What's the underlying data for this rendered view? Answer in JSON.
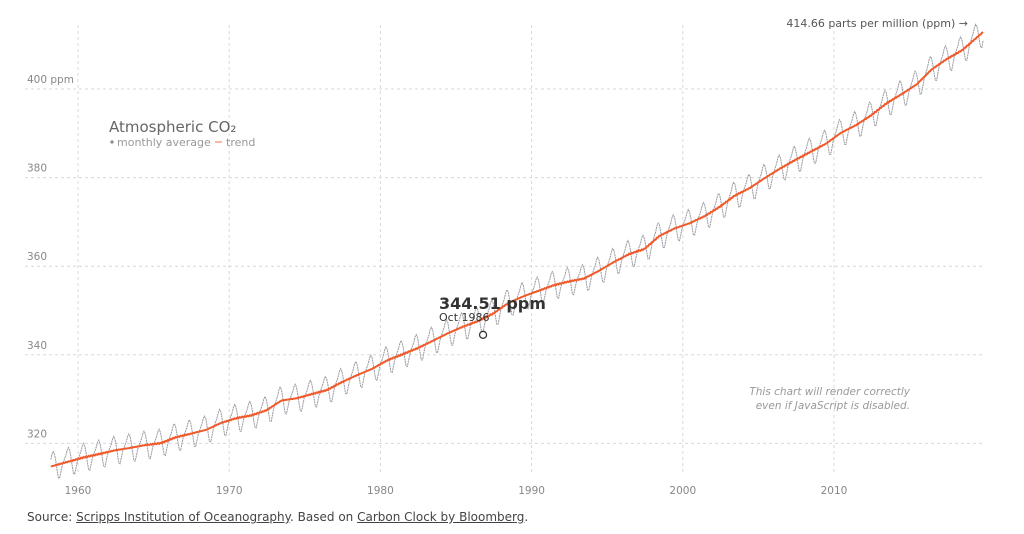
{
  "chart_data": {
    "type": "line",
    "title": "Atmospheric CO₂",
    "legend": {
      "monthly_label": "monthly average",
      "trend_label": "trend",
      "placement": "top-left"
    },
    "xlim": [
      1958.2,
      2019.9
    ],
    "ylim": [
      312,
      418
    ],
    "x_ticks": [
      "1960",
      "1970",
      "1980",
      "1990",
      "2000",
      "2010"
    ],
    "x_tick_values": [
      1960,
      1970,
      1980,
      1990,
      2000,
      2010
    ],
    "y_ticks": [
      "320",
      "340",
      "360",
      "380",
      "400 ppm"
    ],
    "y_tick_values": [
      320,
      340,
      360,
      380,
      400
    ],
    "grid": true,
    "annual_mean_years": [
      1959,
      1960,
      1961,
      1962,
      1963,
      1964,
      1965,
      1966,
      1967,
      1968,
      1969,
      1970,
      1971,
      1972,
      1973,
      1974,
      1975,
      1976,
      1977,
      1978,
      1979,
      1980,
      1981,
      1982,
      1983,
      1984,
      1985,
      1986,
      1987,
      1988,
      1989,
      1990,
      1991,
      1992,
      1993,
      1994,
      1995,
      1996,
      1997,
      1998,
      1999,
      2000,
      2001,
      2002,
      2003,
      2004,
      2005,
      2006,
      2007,
      2008,
      2009,
      2010,
      2011,
      2012,
      2013,
      2014,
      2015,
      2016,
      2017,
      2018,
      2019
    ],
    "annual_mean_ppm": [
      315.97,
      316.91,
      317.64,
      318.45,
      318.99,
      319.62,
      320.04,
      321.37,
      322.18,
      323.05,
      324.62,
      325.68,
      326.32,
      327.46,
      329.68,
      330.19,
      331.12,
      332.03,
      333.84,
      335.41,
      336.84,
      338.76,
      340.12,
      341.48,
      343.15,
      344.85,
      346.35,
      347.61,
      349.31,
      351.69,
      353.2,
      354.45,
      355.7,
      356.54,
      357.21,
      358.96,
      360.97,
      362.74,
      363.88,
      366.84,
      368.54,
      369.71,
      371.32,
      373.45,
      375.98,
      377.7,
      379.98,
      382.09,
      384.02,
      385.83,
      387.64,
      390.1,
      391.85,
      394.06,
      396.74,
      398.81,
      401.01,
      404.41,
      406.76,
      408.72,
      411.66
    ],
    "seasonal_cycle_ppm_jan_to_dec": [
      0.2,
      0.9,
      1.6,
      2.7,
      3.2,
      2.5,
      0.9,
      -1.2,
      -3.0,
      -3.2,
      -1.9,
      -0.6
    ],
    "series_colors": {
      "monthly": "#9a9aa3",
      "trend": "#f05a2b"
    },
    "highlight": {
      "value_label": "344.51 ppm",
      "date_label": "Oct 1986",
      "x": 1986.79,
      "y": 344.51
    },
    "latest_annotation": "414.66 parts per million (ppm) →",
    "note_line1": "This chart will render correctly",
    "note_line2": "even if JavaScript is disabled."
  },
  "footer": {
    "prefix": "Source: ",
    "link1": "Scripps Institution of Oceanography",
    "middle": ". Based on ",
    "link2": "Carbon Clock by Bloomberg",
    "suffix": "."
  }
}
